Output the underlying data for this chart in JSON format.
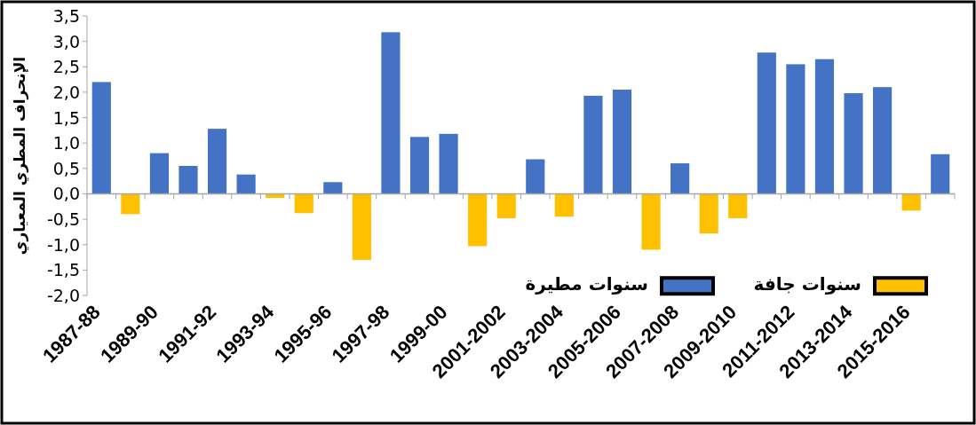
{
  "chart_data": {
    "type": "bar",
    "ylabel": "الإنحراف المطري المعياري",
    "categories": [
      "1987-88",
      null,
      "1989-90",
      null,
      "1991-92",
      null,
      "1993-94",
      null,
      "1995-96",
      null,
      "1997-98",
      null,
      "1999-00",
      null,
      "2001-2002",
      null,
      "2003-2004",
      null,
      "2005-2006",
      null,
      "2007-2008",
      null,
      "2009-2010",
      null,
      "2011-2012",
      null,
      "2013-2014",
      null,
      "2015-2016",
      null
    ],
    "series": [
      {
        "name": "سنوات مطيرة",
        "color": "#4472c4",
        "values": [
          2.2,
          null,
          0.8,
          0.55,
          1.28,
          0.38,
          null,
          null,
          0.23,
          null,
          3.18,
          1.12,
          1.18,
          null,
          null,
          0.68,
          null,
          1.93,
          2.05,
          null,
          0.6,
          null,
          null,
          2.78,
          2.55,
          2.65,
          1.98,
          2.1,
          null,
          0.78
        ]
      },
      {
        "name": "سنوات جافة",
        "color": "#ffc000",
        "values": [
          null,
          -0.4,
          null,
          null,
          null,
          null,
          -0.08,
          -0.38,
          null,
          -1.3,
          null,
          null,
          null,
          -1.03,
          -0.48,
          null,
          -0.45,
          null,
          null,
          -1.1,
          null,
          -0.78,
          -0.48,
          null,
          null,
          null,
          null,
          null,
          -0.33,
          null
        ]
      }
    ],
    "ylim": [
      -2,
      3.5
    ],
    "yticks": [
      {
        "value": -2,
        "label": "-2,0"
      },
      {
        "value": -1.5,
        "label": "-1,5"
      },
      {
        "value": -1,
        "label": "-1,0"
      },
      {
        "value": -0.5,
        "label": "-0,5"
      },
      {
        "value": 0,
        "label": "0,0"
      },
      {
        "value": 0.5,
        "label": "0,5"
      },
      {
        "value": 1,
        "label": "1,0"
      },
      {
        "value": 1.5,
        "label": "1,5"
      },
      {
        "value": 2,
        "label": "2,0"
      },
      {
        "value": 2.5,
        "label": "2,5"
      },
      {
        "value": 3,
        "label": "3,0"
      },
      {
        "value": 3.5,
        "label": "3,5"
      }
    ],
    "legend": "bottom right"
  }
}
